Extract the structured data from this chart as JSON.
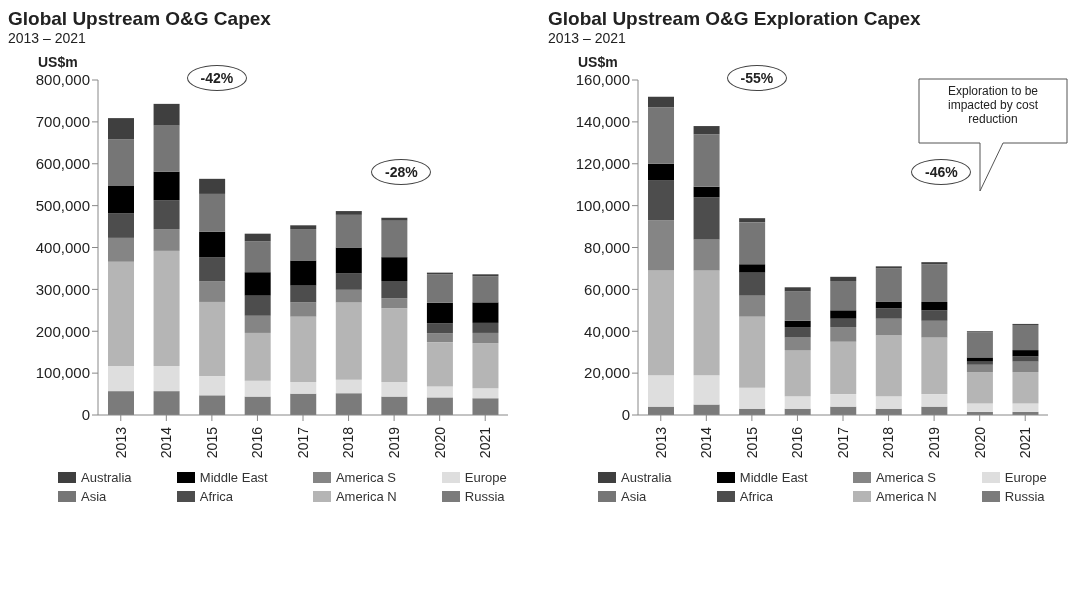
{
  "chart_data": [
    {
      "type": "bar",
      "stacked": true,
      "title": "Global Upstream O&G Capex",
      "subtitle": "2013 – 2021",
      "ylabel": "US$m",
      "categories": [
        "2013",
        "2014",
        "2015",
        "2016",
        "2017",
        "2018",
        "2019",
        "2020",
        "2021"
      ],
      "series": [
        {
          "name": "Russia",
          "color": "#7b7b7b",
          "values": [
            57000,
            57000,
            47000,
            44000,
            51000,
            52000,
            44000,
            42000,
            40000
          ]
        },
        {
          "name": "Europe",
          "color": "#dedede",
          "values": [
            60000,
            60000,
            46000,
            38000,
            28000,
            32000,
            35000,
            26000,
            24000
          ]
        },
        {
          "name": "America N",
          "color": "#b5b5b5",
          "values": [
            249000,
            275000,
            177000,
            114000,
            156000,
            185000,
            176000,
            106000,
            107000
          ]
        },
        {
          "name": "America S",
          "color": "#858585",
          "values": [
            57000,
            52000,
            49000,
            41000,
            34000,
            30000,
            24000,
            21000,
            25000
          ]
        },
        {
          "name": "Africa",
          "color": "#4d4d4d",
          "values": [
            59000,
            69000,
            58000,
            48000,
            40000,
            39000,
            41000,
            24000,
            24000
          ]
        },
        {
          "name": "Middle East",
          "color": "#000000",
          "values": [
            65000,
            68000,
            61000,
            56000,
            60000,
            62000,
            57000,
            49000,
            49000
          ]
        },
        {
          "name": "Asia",
          "color": "#767676",
          "values": [
            111000,
            110000,
            90000,
            74000,
            75000,
            78000,
            87000,
            68000,
            62000
          ]
        },
        {
          "name": "Australia",
          "color": "#3f3f3f",
          "values": [
            51000,
            52000,
            36000,
            18000,
            9000,
            9000,
            7000,
            4000,
            5000
          ]
        }
      ],
      "ylim": [
        0,
        800000
      ],
      "yticks": [
        {
          "value": 0,
          "label": "0"
        },
        {
          "value": 100000,
          "label": "100,000"
        },
        {
          "value": 200000,
          "label": "200,000"
        },
        {
          "value": 300000,
          "label": "300,000"
        },
        {
          "value": 400000,
          "label": "400,000"
        },
        {
          "value": 500000,
          "label": "500,000"
        },
        {
          "value": 600000,
          "label": "600,000"
        },
        {
          "value": 700000,
          "label": "700,000"
        },
        {
          "value": 800000,
          "label": "800,000"
        }
      ],
      "grid": false,
      "legend": "bottom",
      "annotations": [
        "-42%",
        "-28%"
      ]
    },
    {
      "type": "bar",
      "stacked": true,
      "title": "Global Upstream O&G Exploration Capex",
      "subtitle": "2013 – 2021",
      "ylabel": "US$m",
      "categories": [
        "2013",
        "2014",
        "2015",
        "2016",
        "2017",
        "2018",
        "2019",
        "2020",
        "2021"
      ],
      "series": [
        {
          "name": "Russia",
          "color": "#7b7b7b",
          "values": [
            4000,
            5000,
            3000,
            3000,
            4000,
            3000,
            4000,
            1500,
            1500
          ]
        },
        {
          "name": "Europe",
          "color": "#dedede",
          "values": [
            15000,
            14000,
            10000,
            6000,
            6000,
            6000,
            6000,
            4000,
            4000
          ]
        },
        {
          "name": "America N",
          "color": "#b5b5b5",
          "values": [
            50000,
            50000,
            34000,
            22000,
            25000,
            29000,
            27000,
            15000,
            15000
          ]
        },
        {
          "name": "America S",
          "color": "#858585",
          "values": [
            24000,
            15000,
            10000,
            6000,
            7000,
            8000,
            8000,
            3500,
            5000
          ]
        },
        {
          "name": "Africa",
          "color": "#4d4d4d",
          "values": [
            19000,
            20000,
            11000,
            5000,
            4000,
            5000,
            5000,
            1500,
            2500
          ]
        },
        {
          "name": "Middle East",
          "color": "#000000",
          "values": [
            8000,
            5000,
            4000,
            3000,
            4000,
            3000,
            4000,
            2000,
            3000
          ]
        },
        {
          "name": "Asia",
          "color": "#767676",
          "values": [
            27000,
            25000,
            20000,
            14000,
            14000,
            16000,
            18000,
            12000,
            12000
          ]
        },
        {
          "name": "Australia",
          "color": "#3f3f3f",
          "values": [
            5000,
            4000,
            2000,
            2000,
            2000,
            1000,
            1000,
            500,
            500
          ]
        }
      ],
      "ylim": [
        0,
        160000
      ],
      "yticks": [
        {
          "value": 0,
          "label": "0"
        },
        {
          "value": 20000,
          "label": "20,000"
        },
        {
          "value": 40000,
          "label": "40,000"
        },
        {
          "value": 60000,
          "label": "60,000"
        },
        {
          "value": 80000,
          "label": "80,000"
        },
        {
          "value": 100000,
          "label": "100,000"
        },
        {
          "value": 120000,
          "label": "120,000"
        },
        {
          "value": 140000,
          "label": "140,000"
        },
        {
          "value": 160000,
          "label": "160,000"
        }
      ],
      "grid": false,
      "legend": "bottom",
      "annotations": [
        "-55%",
        "-46%",
        "Exploration to be impacted by cost reduction"
      ]
    }
  ]
}
